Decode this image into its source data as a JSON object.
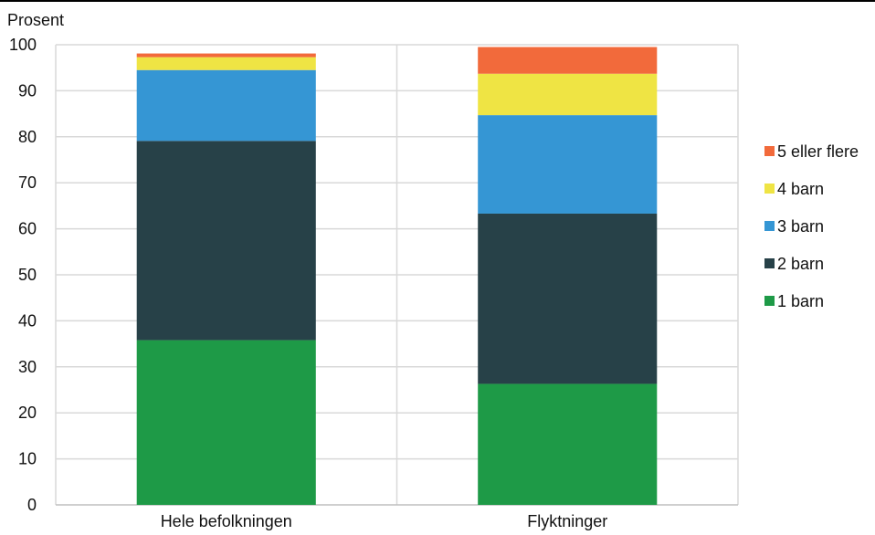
{
  "chart_data": {
    "type": "bar",
    "stacked": true,
    "title": "",
    "ylabel": "Prosent",
    "xlabel": "",
    "ylim": [
      0,
      100
    ],
    "yticks": [
      0,
      10,
      20,
      30,
      40,
      50,
      60,
      70,
      80,
      90,
      100
    ],
    "grid": true,
    "legend_position": "right",
    "categories": [
      "Hele befolkningen",
      "Flyktninger"
    ],
    "series": [
      {
        "name": "1 barn",
        "color": "#1e9a47",
        "values": [
          35.8,
          26.3
        ]
      },
      {
        "name": "2 barn",
        "color": "#274148",
        "values": [
          43.3,
          37.0
        ]
      },
      {
        "name": "3 barn",
        "color": "#3596d4",
        "values": [
          15.4,
          21.4
        ]
      },
      {
        "name": "4 barn",
        "color": "#efe444",
        "values": [
          2.8,
          9.0
        ]
      },
      {
        "name": "5 eller flere",
        "color": "#f26a3b",
        "values": [
          0.8,
          5.8
        ]
      }
    ]
  }
}
